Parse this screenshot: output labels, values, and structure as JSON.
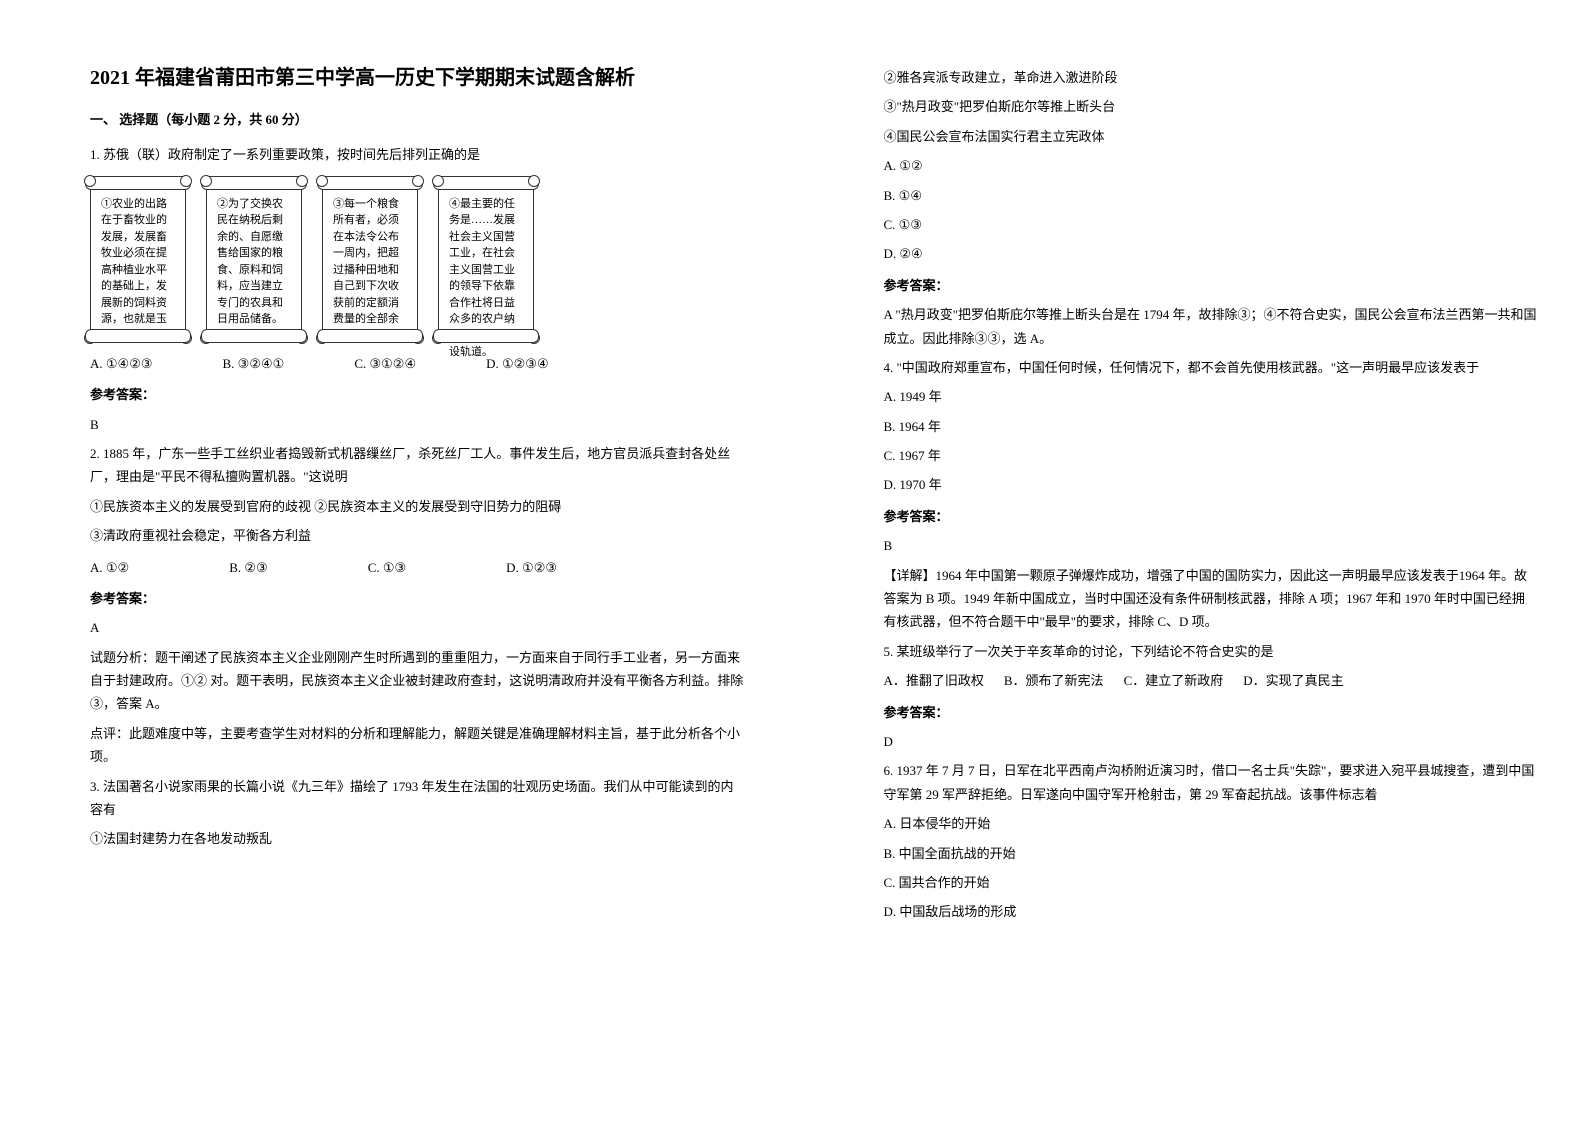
{
  "title": "2021 年福建省莆田市第三中学高一历史下学期期末试题含解析",
  "section1": "一、 选择题（每小题 2 分，共 60 分）",
  "q1": {
    "stem": "1. 苏俄（联）政府制定了一系列重要政策，按时间先后排列正确的是",
    "scrolls": [
      "①农业的出路在于畜牧业的发展，发展畜牧业必须在提高种植业水平的基础上，发展新的饲料资源，也就是玉米。",
      "②为了交换农民在纳税后剩余的、自愿缴售给国家的粮食、原料和饲料，应当建立专门的农具和日用品储备。",
      "③每一个粮食所有者，必须在本法令公布一周内，把超过播种田地和自己到下次收获前的定额消费量的全部余粮呈报交售。",
      "④最主要的任务是……发展社会主义国营工业，在社会主义国营工业的领导下依靠合作社将日益众多的农户纳入社会主义建设轨道。"
    ],
    "options": [
      "A. ①④②③",
      "B. ③②④①",
      "C. ③①②④",
      "D. ①②③④"
    ],
    "answer_label": "参考答案：",
    "answer": "B"
  },
  "q2": {
    "stem": "2. 1885 年，广东一些手工丝织业者捣毁新式机器缫丝厂，杀死丝厂工人。事件发生后，地方官员派兵查封各处丝厂，理由是\"平民不得私擅购置机器。\"这说明",
    "lines": [
      "①民族资本主义的发展受到官府的歧视  ②民族资本主义的发展受到守旧势力的阻碍",
      "③清政府重视社会稳定，平衡各方利益"
    ],
    "options": [
      "A. ①②",
      "B. ②③",
      "C. ①③",
      "D. ①②③"
    ],
    "answer_label": "参考答案：",
    "answer": "A",
    "analysis": [
      "试题分析：题干阐述了民族资本主义企业刚刚产生时所遇到的重重阻力，一方面来自于同行手工业者，另一方面来自于封建政府。①②  对。题干表明，民族资本主义企业被封建政府查封，这说明清政府并没有平衡各方利益。排除③，答案 A。",
      "点评：此题难度中等，主要考查学生对材料的分析和理解能力，解题关键是准确理解材料主旨，基于此分析各个小项。"
    ]
  },
  "q3": {
    "stem": "3. 法国著名小说家雨果的长篇小说《九三年》描绘了 1793 年发生在法国的壮观历史场面。我们从中可能读到的内容有",
    "line1": "①法国封建势力在各地发动叛乱",
    "col2lines": [
      "②雅各宾派专政建立，革命进入激进阶段",
      "③\"热月政变\"把罗伯斯庇尔等推上断头台",
      "④国民公会宣布法国实行君主立宪政体"
    ],
    "options": [
      "A. ①②",
      "B. ①④",
      "C. ①③",
      "D. ②④"
    ],
    "answer_label": "参考答案：",
    "answer_text": "A   \"热月政变\"把罗伯斯庇尔等推上断头台是在 1794 年，故排除③；④不符合史实，国民公会宣布法兰西第一共和国成立。因此排除③③，选 A。"
  },
  "q4": {
    "stem": "4. \"中国政府郑重宣布，中国任何时候，任何情况下，都不会首先使用核武器。\"这一声明最早应该发表于",
    "options": [
      "A. 1949 年",
      "B. 1964 年",
      "C. 1967 年",
      "D. 1970 年"
    ],
    "answer_label": "参考答案：",
    "answer": "B",
    "analysis": "【详解】1964 年中国第一颗原子弹爆炸成功，增强了中国的国防实力，因此这一声明最早应该发表于1964 年。故答案为 B 项。1949 年新中国成立，当时中国还没有条件研制核武器，排除 A 项；1967 年和 1970 年时中国已经拥有核武器，但不符合题干中\"最早\"的要求，排除 C、D 项。"
  },
  "q5": {
    "stem": "5. 某班级举行了一次关于辛亥革命的讨论，下列结论不符合史实的是",
    "options": [
      "A．推翻了旧政权",
      "B．颁布了新宪法",
      "C．建立了新政府",
      "D．实现了真民主"
    ],
    "answer_label": "参考答案：",
    "answer": "D"
  },
  "q6": {
    "stem": "6. 1937 年 7 月 7 日，日军在北平西南卢沟桥附近演习时，借口一名士兵\"失踪\"，要求进入宛平县城搜查，遭到中国守军第 29 军严辞拒绝。日军遂向中国守军开枪射击，第 29 军奋起抗战。该事件标志着",
    "options": [
      "A. 日本侵华的开始",
      "B. 中国全面抗战的开始",
      "C. 国共合作的开始",
      "D. 中国敌后战场的形成"
    ]
  }
}
